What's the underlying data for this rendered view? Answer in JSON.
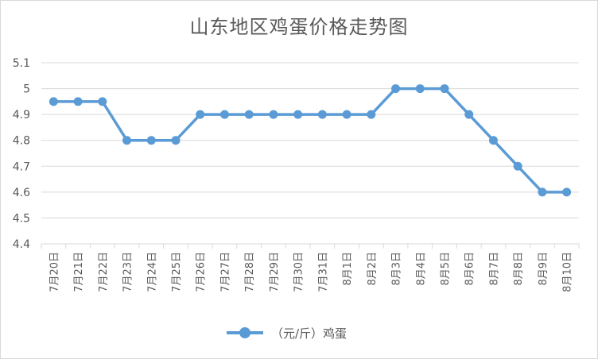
{
  "chart_data": {
    "type": "line",
    "title": "山东地区鸡蛋价格走势图",
    "categories": [
      "7月20日",
      "7月21日",
      "7月22日",
      "7月23日",
      "7月24日",
      "7月25日",
      "7月26日",
      "7月27日",
      "7月28日",
      "7月29日",
      "7月30日",
      "7月31日",
      "8月1日",
      "8月2日",
      "8月3日",
      "8月4日",
      "8月5日",
      "8月6日",
      "8月7日",
      "8月8日",
      "8月9日",
      "8月10日"
    ],
    "series": [
      {
        "name": "（元/斤）鸡蛋",
        "values": [
          4.95,
          4.95,
          4.95,
          4.8,
          4.8,
          4.8,
          4.9,
          4.9,
          4.9,
          4.9,
          4.9,
          4.9,
          4.9,
          4.9,
          5.0,
          5.0,
          5.0,
          4.9,
          4.8,
          4.7,
          4.6,
          4.6
        ]
      }
    ],
    "yticks": [
      "4.4",
      "4.5",
      "4.6",
      "4.7",
      "4.8",
      "4.9",
      "5",
      "5.1"
    ],
    "ylim": [
      4.4,
      5.1
    ],
    "grid": true,
    "legend": "bottom",
    "colors": {
      "series": "#5b9bd5",
      "grid": "#d9d9d9",
      "text": "#595959"
    }
  }
}
